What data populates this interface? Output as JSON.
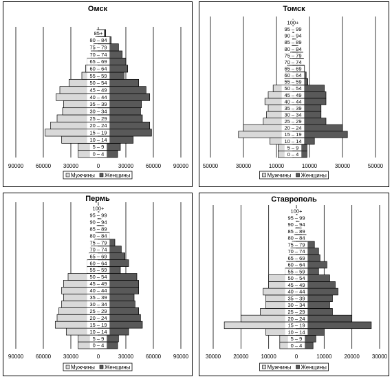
{
  "legend": {
    "male": "Мужчины",
    "female": "Женщины"
  },
  "colors": {
    "male": "#d9d9d9",
    "female": "#595959",
    "border": "#000000"
  },
  "chart_data": [
    {
      "type": "bar",
      "title": "Омск",
      "categories": [
        "0 – 4",
        "5 – 9",
        "10 – 14",
        "15 – 19",
        "20 – 24",
        "25 – 29",
        "30 – 34",
        "35 – 39",
        "40 – 44",
        "45 – 49",
        "50 – 54",
        "55 – 59",
        "60 – 64",
        "65 – 69",
        "70 – 74",
        "75 – 79",
        "80 – 84",
        "85+"
      ],
      "series": [
        {
          "name": "Мужчины",
          "values": [
            22000,
            22000,
            40000,
            58000,
            52000,
            45000,
            39000,
            38000,
            46000,
            42000,
            32000,
            18000,
            14000,
            12000,
            8000,
            5000,
            3000,
            1500
          ]
        },
        {
          "name": "Женщины",
          "values": [
            21000,
            24000,
            38000,
            58000,
            56000,
            48000,
            46000,
            47000,
            56000,
            52000,
            44000,
            28000,
            32000,
            30000,
            26000,
            22000,
            14000,
            8000
          ]
        }
      ],
      "xlim": [
        -90000,
        90000
      ],
      "xticks": [
        "90000",
        "60000",
        "30000",
        "0",
        "30000",
        "60000",
        "90000"
      ]
    },
    {
      "type": "bar",
      "title": "Томск",
      "categories": [
        "0 – 4",
        "5 – 9",
        "10 – 14",
        "15 – 19",
        "20 – 24",
        "25 – 29",
        "30 – 34",
        "35 – 39",
        "40 – 44",
        "45 – 49",
        "50 – 54",
        "55 – 59",
        "60 – 64",
        "65 – 69",
        "70 – 74",
        "75 – 79",
        "80 – 84",
        "85 – 89",
        "90 – 94",
        "95 – 99",
        "100+"
      ],
      "series": [
        {
          "name": "Мужчины",
          "values": [
            9000,
            9000,
            14000,
            33000,
            30000,
            18000,
            16000,
            15000,
            17000,
            15000,
            12000,
            5000,
            4500,
            3500,
            2000,
            1500,
            600,
            300,
            150,
            80,
            30
          ]
        },
        {
          "name": "Женщины",
          "values": [
            8500,
            8500,
            13000,
            33000,
            30000,
            20000,
            17000,
            17000,
            20000,
            20000,
            19000,
            9000,
            8000,
            7000,
            6500,
            6000,
            3000,
            1800,
            600,
            200,
            50
          ]
        }
      ],
      "xlim": [
        -50000,
        50000
      ],
      "xticks": [
        "50000",
        "30000",
        "10000",
        "10000",
        "30000",
        "50000"
      ]
    },
    {
      "type": "bar",
      "title": "Пермь",
      "categories": [
        "0 – 4",
        "5 – 9",
        "10 – 14",
        "15 – 19",
        "20 – 24",
        "25 – 29",
        "30 – 34",
        "35 – 39",
        "40 – 44",
        "45 – 49",
        "50 – 54",
        "55 – 59",
        "60 – 64",
        "65 – 69",
        "70 – 74",
        "75 – 79",
        "80 – 84",
        "85 – 89",
        "90 – 94",
        "95 – 99",
        "100+"
      ],
      "series": [
        {
          "name": "Мужчины",
          "values": [
            22000,
            22000,
            35000,
            47000,
            45000,
            43000,
            40000,
            38000,
            40000,
            38000,
            33000,
            12000,
            12000,
            10000,
            8000,
            4000,
            3000,
            1500,
            700,
            200,
            50
          ]
        },
        {
          "name": "Женщины",
          "values": [
            21000,
            22000,
            33000,
            48000,
            46000,
            44000,
            40000,
            39000,
            44000,
            44000,
            42000,
            24000,
            33000,
            29000,
            25000,
            18000,
            12000,
            6000,
            3000,
            800,
            200
          ]
        }
      ],
      "xlim": [
        -90000,
        90000
      ],
      "xticks": [
        "90000",
        "60000",
        "30000",
        "0",
        "30000",
        "60000",
        "90000"
      ]
    },
    {
      "type": "bar",
      "title": "Ставрополь",
      "categories": [
        "0 – 4",
        "5 – 9",
        "10 – 14",
        "15 – 19",
        "20 – 24",
        "25 – 29",
        "30 – 34",
        "35 – 39",
        "40 – 44",
        "45 – 49",
        "50 – 54",
        "55 – 59",
        "60 – 64",
        "65 – 69",
        "70 – 74",
        "75 – 79",
        "80 – 84",
        "85 – 89",
        "90 – 94",
        "95 – 99",
        "100+"
      ],
      "series": [
        {
          "name": "Мужчины",
          "values": [
            6000,
            6000,
            11000,
            26000,
            20000,
            13000,
            11000,
            11000,
            12000,
            10000,
            10000,
            4000,
            3500,
            2500,
            2000,
            1500,
            700,
            300,
            150,
            50,
            20
          ]
        },
        {
          "name": "Женщины",
          "values": [
            6000,
            7000,
            10000,
            27000,
            20000,
            13000,
            12000,
            13000,
            15000,
            14000,
            12000,
            8000,
            11000,
            8500,
            8000,
            6500,
            3500,
            1800,
            1000,
            300,
            100
          ]
        }
      ],
      "xlim": [
        -30000,
        30000
      ],
      "xticks": [
        "30000",
        "20000",
        "10000",
        "0",
        "10000",
        "20000",
        "30000"
      ]
    }
  ]
}
